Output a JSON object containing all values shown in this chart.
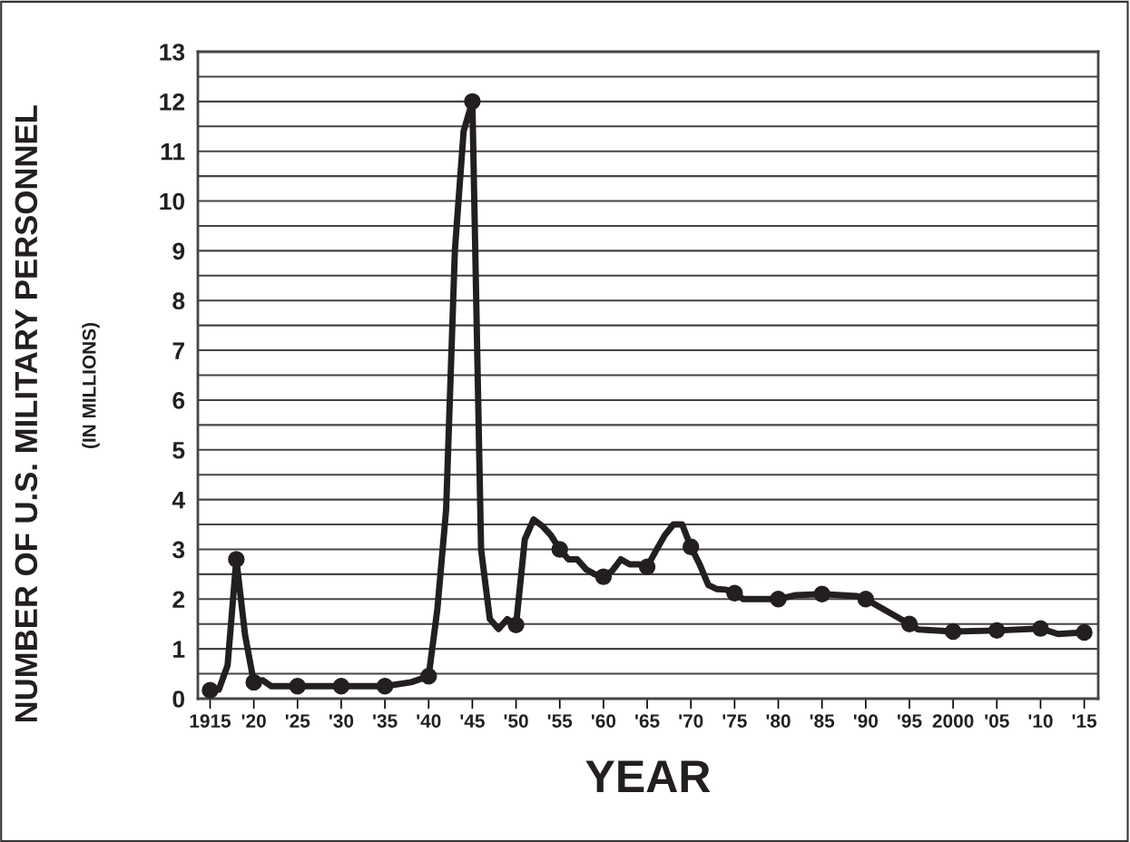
{
  "chart_data": {
    "type": "line",
    "xlabel": "YEAR",
    "ylabel": "NUMBER OF U.S. MILITARY PERSONNEL",
    "annotations": [
      "(IN MILLIONS)"
    ],
    "xlim": [
      1913.6,
      2016.6
    ],
    "ylim": [
      0,
      13
    ],
    "xticks": [
      {
        "value": 1915,
        "label": "1915"
      },
      {
        "value": 1920,
        "label": "'20"
      },
      {
        "value": 1925,
        "label": "'25"
      },
      {
        "value": 1930,
        "label": "'30"
      },
      {
        "value": 1935,
        "label": "'35"
      },
      {
        "value": 1940,
        "label": "'40"
      },
      {
        "value": 1945,
        "label": "'45"
      },
      {
        "value": 1950,
        "label": "'50"
      },
      {
        "value": 1955,
        "label": "'55"
      },
      {
        "value": 1960,
        "label": "'60"
      },
      {
        "value": 1965,
        "label": "'65"
      },
      {
        "value": 1970,
        "label": "'70"
      },
      {
        "value": 1975,
        "label": "'75"
      },
      {
        "value": 1980,
        "label": "'80"
      },
      {
        "value": 1985,
        "label": "'85"
      },
      {
        "value": 1990,
        "label": "'90"
      },
      {
        "value": 1995,
        "label": "'95"
      },
      {
        "value": 2000,
        "label": "2000"
      },
      {
        "value": 2005,
        "label": "'05"
      },
      {
        "value": 2010,
        "label": "'10"
      },
      {
        "value": 2015,
        "label": "'15"
      }
    ],
    "yticks": [
      0,
      {
        "value": 0.5,
        "label": null
      },
      1,
      {
        "value": 1.5,
        "label": null
      },
      2,
      {
        "value": 2.5,
        "label": null
      },
      3,
      {
        "value": 3.5,
        "label": null
      },
      4,
      {
        "value": 4.5,
        "label": null
      },
      5,
      {
        "value": 5.5,
        "label": null
      },
      6,
      {
        "value": 6.5,
        "label": null
      },
      7,
      {
        "value": 7.5,
        "label": null
      },
      8,
      {
        "value": 8.5,
        "label": null
      },
      9,
      {
        "value": 9.5,
        "label": null
      },
      10,
      {
        "value": 10.5,
        "label": null
      },
      11,
      {
        "value": 11.5,
        "label": null
      },
      12,
      {
        "value": 12.5,
        "label": null
      },
      13
    ],
    "grid": "y",
    "legend": false,
    "line_style": "solid",
    "series": [
      {
        "marker": "none",
        "color": "#231f20",
        "x": [
          1915,
          1916,
          1917,
          1918,
          1919,
          1920,
          1921,
          1922,
          1925,
          1930,
          1935,
          1938,
          1940,
          1941,
          1942,
          1943,
          1944,
          1945,
          1946,
          1947,
          1948,
          1949,
          1950,
          1951,
          1952,
          1953,
          1954,
          1955,
          1956,
          1957,
          1958,
          1959,
          1960,
          1961,
          1962,
          1963,
          1964,
          1965,
          1966,
          1967,
          1968,
          1969,
          1970,
          1971,
          1972,
          1973,
          1974,
          1975,
          1976,
          1980,
          1982,
          1985,
          1989,
          1990,
          1995,
          1996,
          2000,
          2005,
          2010,
          2012,
          2015
        ],
        "values": [
          0.17,
          0.18,
          0.67,
          2.8,
          1.28,
          0.33,
          0.37,
          0.25,
          0.25,
          0.25,
          0.25,
          0.33,
          0.45,
          1.8,
          3.8,
          9.0,
          11.4,
          12.0,
          3.0,
          1.6,
          1.4,
          1.6,
          1.48,
          3.2,
          3.6,
          3.47,
          3.28,
          3.0,
          2.8,
          2.8,
          2.6,
          2.5,
          2.45,
          2.57,
          2.8,
          2.7,
          2.7,
          2.65,
          2.97,
          3.28,
          3.5,
          3.5,
          3.05,
          2.7,
          2.28,
          2.2,
          2.19,
          2.12,
          2.0,
          2.0,
          2.08,
          2.1,
          2.06,
          2.0,
          1.5,
          1.39,
          1.35,
          1.37,
          1.41,
          1.3,
          1.33
        ]
      },
      {
        "type": "scatter",
        "marker": "circle",
        "color": "#231f20",
        "x": [
          1915,
          1918,
          1920,
          1925,
          1930,
          1935,
          1940,
          1945,
          1950,
          1955,
          1960,
          1965,
          1970,
          1975,
          1980,
          1985,
          1990,
          1995,
          2000,
          2005,
          2010,
          2015
        ],
        "values": [
          0.17,
          2.8,
          0.33,
          0.25,
          0.25,
          0.25,
          0.45,
          12.0,
          1.48,
          3.0,
          2.45,
          2.65,
          3.05,
          2.12,
          2.0,
          2.1,
          2.0,
          1.5,
          1.35,
          1.37,
          1.41,
          1.33
        ]
      }
    ]
  }
}
